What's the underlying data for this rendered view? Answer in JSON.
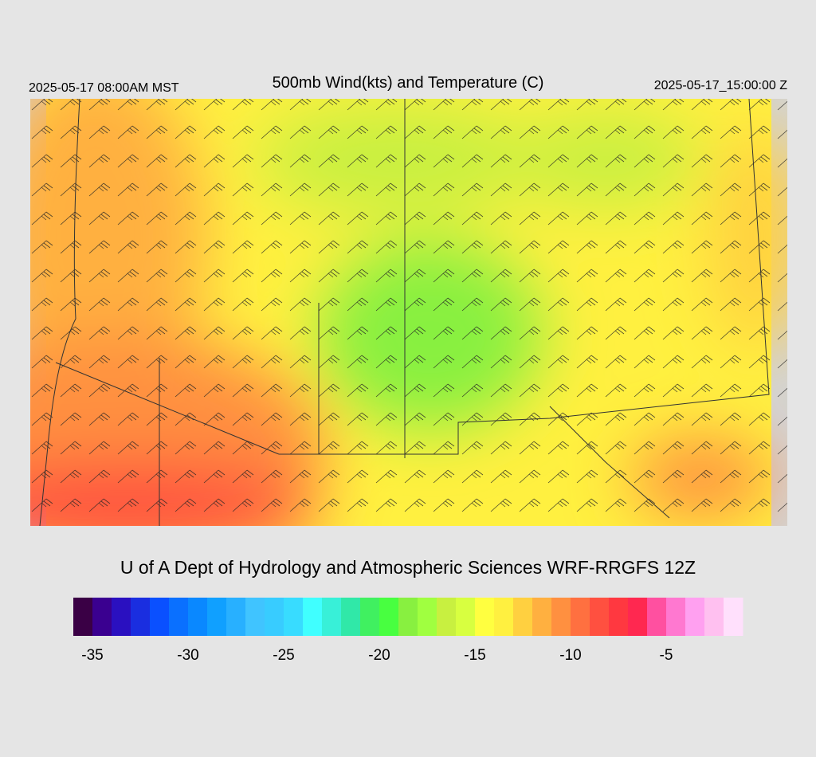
{
  "header": {
    "left": "2025-05-17 08:00AM MST",
    "title": "500mb Wind(kts) and Temperature (C)",
    "right": "2025-05-17_15:00:00 Z"
  },
  "credit": "U of A Dept of Hydrology and Atmospheric Sciences WRF-RRGFS 12Z",
  "colorbar": {
    "range": [
      -36,
      -1
    ],
    "ticks": [
      -35,
      -30,
      -25,
      -20,
      -15,
      -10,
      -5
    ],
    "colors": [
      "#3a0045",
      "#3a0090",
      "#2a10c0",
      "#1a2ee0",
      "#0a50ff",
      "#0a70ff",
      "#0a88ff",
      "#10a0ff",
      "#28b0ff",
      "#40c4ff",
      "#38ccff",
      "#38dcff",
      "#40ffff",
      "#38f0d8",
      "#30e8a8",
      "#40f060",
      "#48ff40",
      "#88f040",
      "#a0ff40",
      "#c8f040",
      "#d8ff40",
      "#ffff40",
      "#fff040",
      "#ffd040",
      "#ffb040",
      "#ff9040",
      "#ff7040",
      "#ff5040",
      "#ff3840",
      "#ff2850",
      "#ff50a0",
      "#ff78d0",
      "#ffa0f0",
      "#ffc0f0",
      "#ffe0fc"
    ]
  }
}
